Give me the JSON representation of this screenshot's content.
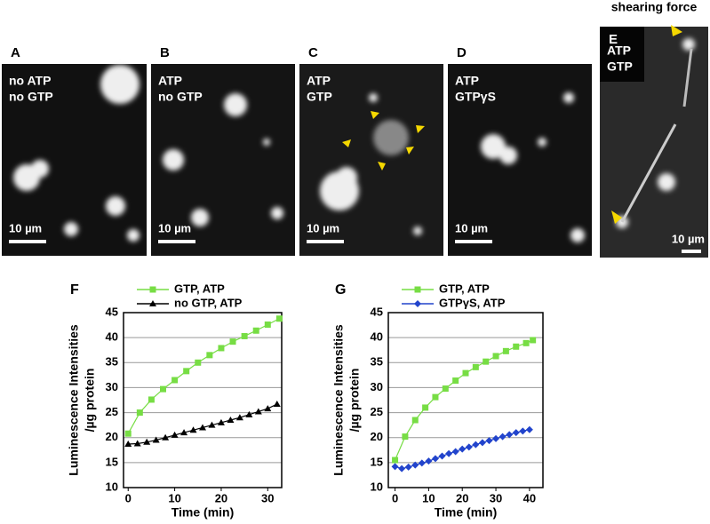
{
  "heading": "shearing force",
  "panels": [
    {
      "letter": "A",
      "lines": [
        "no ATP",
        "no GTP"
      ],
      "scale": "10 µm"
    },
    {
      "letter": "B",
      "lines": [
        "ATP",
        "no GTP"
      ],
      "scale": "10 µm"
    },
    {
      "letter": "C",
      "lines": [
        "ATP",
        "GTP"
      ],
      "scale": "10 µm"
    },
    {
      "letter": "D",
      "lines": [
        "ATP",
        "GTPγS"
      ],
      "scale": "10 µm"
    },
    {
      "letter": "E",
      "lines": [
        "ATP",
        "GTP"
      ],
      "scale": "10 µm"
    }
  ],
  "chart_data": [
    {
      "type": "line",
      "label": "F",
      "xlabel": "Time (min)",
      "ylabel": [
        "Luminescence Intensities",
        "/µg protein"
      ],
      "xlim": [
        -1,
        33
      ],
      "xticks": [
        0,
        10,
        20,
        30
      ],
      "ylim": [
        10,
        45
      ],
      "yticks": [
        10,
        15,
        20,
        25,
        30,
        35,
        40,
        45
      ],
      "grid": true,
      "series": [
        {
          "name": "GTP, ATP",
          "color": "#77dd44",
          "marker": "square",
          "x": [
            0,
            2.5,
            5,
            7.5,
            10,
            12.5,
            15,
            17.5,
            20,
            22.5,
            25,
            27.5,
            30,
            32.5
          ],
          "values": [
            20.8,
            25,
            27.6,
            29.7,
            31.5,
            33.3,
            35,
            36.5,
            37.9,
            39.2,
            40.3,
            41.4,
            42.6,
            43.8
          ]
        },
        {
          "name": "no GTP, ATP",
          "color": "#000000",
          "marker": "triangle",
          "x": [
            0,
            2,
            4,
            6,
            8,
            10,
            12,
            14,
            16,
            18,
            20,
            22,
            24,
            26,
            28,
            30,
            32
          ],
          "values": [
            18.7,
            18.8,
            19.1,
            19.5,
            20,
            20.5,
            21,
            21.5,
            22,
            22.5,
            23,
            23.5,
            24,
            24.6,
            25.2,
            25.8,
            26.7
          ]
        }
      ]
    },
    {
      "type": "line",
      "label": "G",
      "xlabel": "Time (min)",
      "ylabel": [
        "Luminescence Intensities",
        "/µg protein"
      ],
      "xlim": [
        -2,
        44
      ],
      "xticks": [
        0,
        10,
        20,
        30,
        40
      ],
      "ylim": [
        10,
        45
      ],
      "yticks": [
        10,
        15,
        20,
        25,
        30,
        35,
        40,
        45
      ],
      "grid": true,
      "series": [
        {
          "name": "GTP, ATP",
          "color": "#77dd44",
          "marker": "square",
          "x": [
            0,
            3,
            6,
            9,
            12,
            15,
            18,
            21,
            24,
            27,
            30,
            33,
            36,
            39,
            41
          ],
          "values": [
            15.5,
            20.2,
            23.5,
            26,
            28.1,
            29.8,
            31.4,
            32.9,
            34.1,
            35.2,
            36.3,
            37.3,
            38.2,
            38.9,
            39.5
          ]
        },
        {
          "name": "GTPγS, ATP",
          "color": "#2244cc",
          "marker": "diamond",
          "x": [
            0,
            2,
            4,
            6,
            8,
            10,
            12,
            14,
            16,
            18,
            20,
            22,
            24,
            26,
            28,
            30,
            32,
            34,
            36,
            38,
            40
          ],
          "values": [
            14.2,
            13.8,
            14.1,
            14.5,
            14.9,
            15.3,
            15.8,
            16.3,
            16.8,
            17.2,
            17.7,
            18.1,
            18.6,
            19,
            19.4,
            19.8,
            20.2,
            20.6,
            21,
            21.3,
            21.6
          ]
        }
      ]
    }
  ]
}
